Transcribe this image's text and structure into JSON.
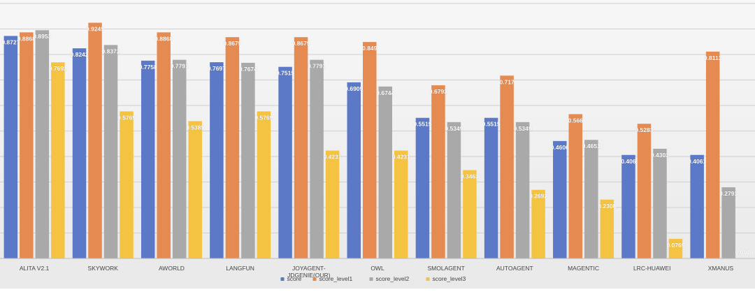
{
  "chart_data": {
    "type": "bar",
    "title": "",
    "xlabel": "",
    "ylabel": "",
    "ylim": [
      0,
      1.0
    ],
    "grid": true,
    "legend_position": "bottom",
    "categories": [
      "ALITA V2.1",
      "SKYWORK",
      "AWORLD",
      "LANGFUN",
      "JOYAGENT-JDGENIE(OUR)",
      "OWL",
      "SMOLAGENT",
      "AUTOAGENT",
      "MAGENTIC",
      "LRC-HUAWEI",
      "XMANUS"
    ],
    "category_lines": [
      [
        "ALITA V2.1"
      ],
      [
        "SKYWORK"
      ],
      [
        "AWORLD"
      ],
      [
        "LANGFUN"
      ],
      [
        "JOYAGENT-",
        "JDGENIE(OUR)"
      ],
      [
        "OWL"
      ],
      [
        "SMOLAGENT"
      ],
      [
        "AUTOAGENT"
      ],
      [
        "MAGENTIC"
      ],
      [
        "LRC-HUAWEI"
      ],
      [
        "XMANUS"
      ]
    ],
    "series": [
      {
        "name": "score",
        "color": "#5b79c6",
        "values": [
          0.8727,
          0.8242,
          0.7758,
          0.7697,
          0.7515,
          0.6909,
          0.5515,
          0.5515,
          0.4606,
          0.406,
          0.4061
        ],
        "labels": [
          "0.8727",
          "0.8242",
          "0.7758",
          "0.7697",
          "0.7515",
          "0.6909",
          "0.5515",
          "0.5515",
          "0.4606",
          "0.406",
          "0.4061"
        ]
      },
      {
        "name": "score_level1",
        "color": "#e58a51",
        "values": [
          0.8868,
          0.9245,
          0.8868,
          0.8679,
          0.8679,
          0.849,
          0.6792,
          0.717,
          0.566,
          0.5283,
          0.8113
        ],
        "labels": [
          "0.8868",
          "0.9245",
          "0.8868",
          "0.8679",
          "0.8679",
          "0.849",
          "0.6792",
          "0.717",
          "0.566",
          "0.5283",
          "0.8113"
        ]
      },
      {
        "name": "score_level2",
        "color": "#a9a9a9",
        "values": [
          0.8953,
          0.8372,
          0.7791,
          0.7674,
          0.7791,
          0.6744,
          0.5349,
          0.5349,
          0.4651,
          0.4302,
          0.2791
        ],
        "labels": [
          "0.8953",
          "0.8372",
          "0.7791",
          "0.7674",
          "0.7791",
          "0.6744",
          "0.5349",
          "0.5349",
          "0.4651",
          "0.4302",
          "0.2791"
        ]
      },
      {
        "name": "score_level3",
        "color": "#f5c342",
        "values": [
          0.7692,
          0.5769,
          0.5385,
          0.5769,
          0.4231,
          0.4231,
          0.3462,
          0.2692,
          0.2308,
          0.0769,
          0.0
        ],
        "labels": [
          "0.7692",
          "0.5769",
          "0.5385",
          "0.5769",
          "0.4231",
          "0.4231",
          "0.3462",
          "0.2692",
          "0.2308",
          "0.0769",
          "0.0000"
        ]
      }
    ]
  }
}
